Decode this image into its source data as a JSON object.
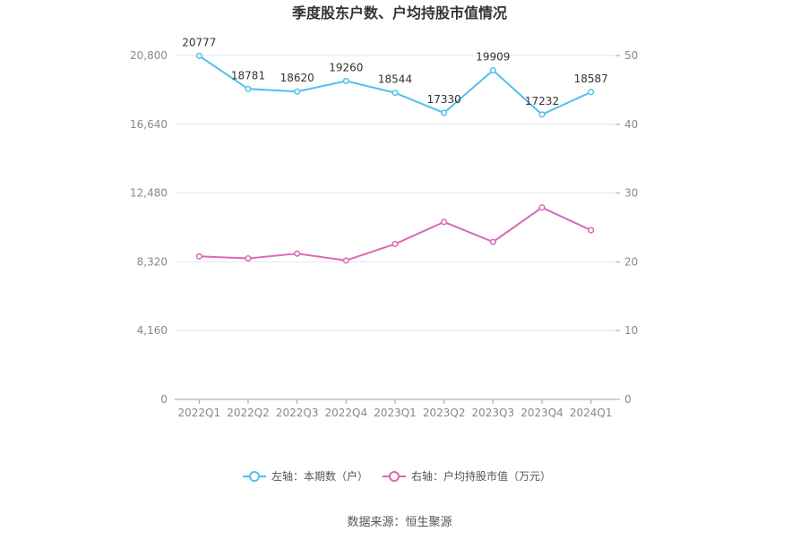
{
  "title": "季度股东户数、户均持股市值情况",
  "source": "数据来源：恒生聚源",
  "colors": {
    "series_left": "#4fc0eb",
    "series_right": "#d968b4",
    "grid": "#e3e6f0",
    "axis": "#9aa0b4"
  },
  "chart_data": {
    "type": "line",
    "categories": [
      "2022Q1",
      "2022Q2",
      "2022Q3",
      "2022Q4",
      "2023Q1",
      "2023Q2",
      "2023Q3",
      "2023Q4",
      "2024Q1"
    ],
    "y_left": {
      "min": 0,
      "max": 20800,
      "ticks": [
        0,
        4160,
        8320,
        12480,
        16640,
        20800
      ],
      "tick_labels": [
        "0",
        "4,160",
        "8,320",
        "12,480",
        "16,640",
        "20,800"
      ]
    },
    "y_right": {
      "min": 0,
      "max": 50,
      "ticks": [
        0,
        10,
        20,
        30,
        40,
        50
      ],
      "tick_labels": [
        "0",
        "10",
        "20",
        "30",
        "40",
        "50"
      ]
    },
    "series": [
      {
        "name": "左轴：本期数（户）",
        "axis": "left",
        "values": [
          20777,
          18781,
          18620,
          19260,
          18544,
          17330,
          19909,
          17232,
          18587
        ],
        "labels": [
          "20777",
          "18781",
          "18620",
          "19260",
          "18544",
          "17330",
          "19909",
          "17232",
          "18587"
        ],
        "show_labels": true
      },
      {
        "name": "右轴：户均持股市值（万元）",
        "axis": "right",
        "values": [
          20.8,
          20.5,
          21.2,
          20.2,
          22.6,
          25.8,
          22.9,
          27.9,
          24.6
        ],
        "show_labels": false
      }
    ],
    "grid": true,
    "legend_position": "bottom"
  }
}
